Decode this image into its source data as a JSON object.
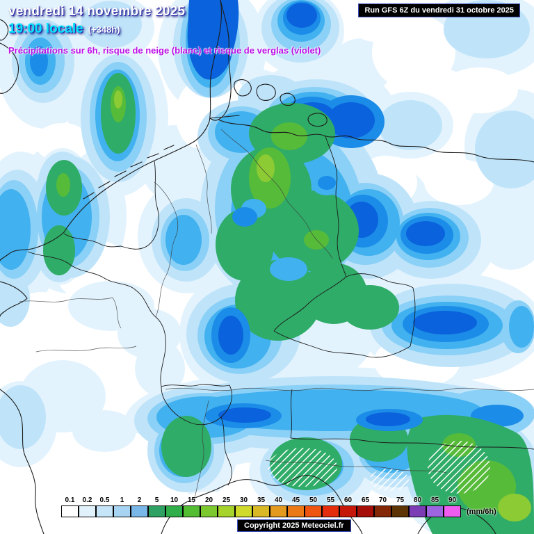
{
  "header": {
    "date_line": "vendredi 14 novembre 2025",
    "time_line": "19:00 locale",
    "offset_label": "(+348h)",
    "subtitle": "Précipitations sur 6h, risque de neige (blanc) et risque de verglas (violet)"
  },
  "run_box": {
    "label": "Run GFS 6Z du vendredi 31 octobre 2025"
  },
  "copyright_label": "Copyright 2025 Meteociel.fr",
  "legend": {
    "unit": "(mm/6h)",
    "ticks": [
      "0.1",
      "0.2",
      "0.5",
      "1",
      "2",
      "5",
      "10",
      "15",
      "20",
      "25",
      "30",
      "35",
      "40",
      "45",
      "50",
      "55",
      "60",
      "65",
      "70",
      "75",
      "80",
      "85",
      "90"
    ],
    "colors": [
      "#ffffff",
      "#e2f2fc",
      "#c6e5f8",
      "#a6d4f2",
      "#79b7e8",
      "#2fa263",
      "#2fae49",
      "#52bd33",
      "#7cc92f",
      "#a6d32c",
      "#d0da2a",
      "#d9b825",
      "#e49a1e",
      "#eb7a16",
      "#ed5511",
      "#e32d0d",
      "#c6180a",
      "#a50f07",
      "#842706",
      "#5d3404",
      "#7b3cb5",
      "#9d65e0",
      "#f05cf0"
    ]
  },
  "map_palette": {
    "none": "#ffffff",
    "very_light": "#e3f3fd",
    "light": "#bfe4fa",
    "sky": "#8bd0f6",
    "cyan": "#41b1ef",
    "blue": "#1b8ce8",
    "deep_blue": "#0a62dc",
    "green": "#2fac67",
    "dark_green": "#57bb3a",
    "yellow_green": "#8ccb33",
    "line": "#1b1b1b",
    "river": "#3a3a3a"
  }
}
